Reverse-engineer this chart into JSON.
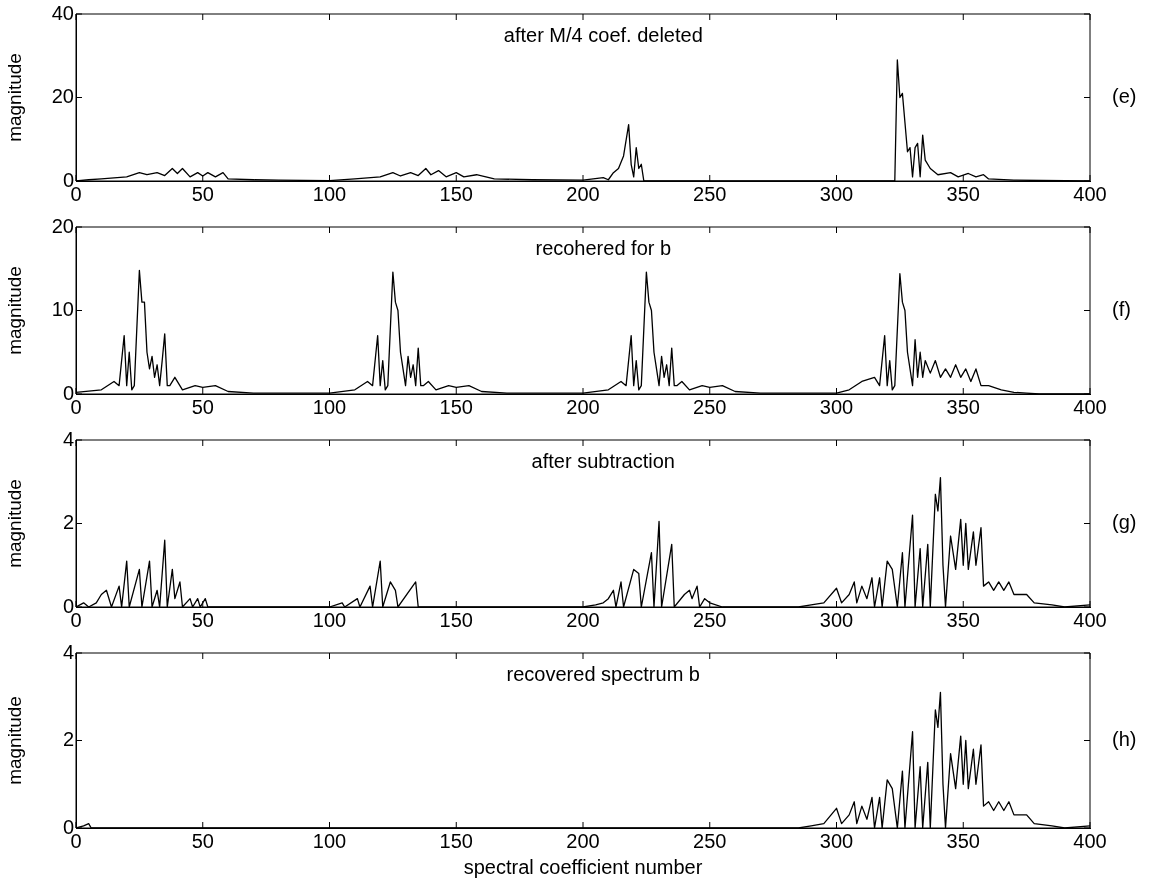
{
  "chart_data": [
    {
      "type": "line",
      "title": "after M/4 coef. deleted",
      "ylabel": "magnitude",
      "annotations": [
        "(e)"
      ],
      "xlim": [
        0,
        400
      ],
      "xticks": [
        0,
        50,
        100,
        150,
        200,
        250,
        300,
        350,
        400
      ],
      "ylim": [
        0,
        40
      ],
      "yticks": [
        0,
        20,
        40
      ],
      "grid": false,
      "legend": false,
      "marker": "none",
      "line_style": "solid",
      "series": [
        {
          "color": "#000000",
          "x": [
            0,
            5,
            10,
            20,
            25,
            28,
            32,
            35,
            38,
            40,
            42,
            45,
            48,
            50,
            52,
            55,
            58,
            60,
            70,
            80,
            100,
            110,
            120,
            125,
            128,
            132,
            135,
            138,
            140,
            143,
            146,
            150,
            153,
            158,
            165,
            180,
            200,
            208,
            210,
            212,
            214,
            216,
            218,
            219,
            220,
            221,
            222,
            223,
            224,
            323,
            324,
            325,
            326,
            327,
            328,
            329,
            330,
            331,
            332,
            333,
            334,
            335,
            337,
            340,
            345,
            348,
            352,
            355,
            358,
            360,
            370,
            400
          ],
          "values": [
            0,
            0.3,
            0.5,
            1,
            2,
            1.5,
            2,
            1.3,
            3,
            1.8,
            3,
            1,
            2,
            1.2,
            2,
            1,
            2,
            0.5,
            0.3,
            0.2,
            0.1,
            0.5,
            1,
            2,
            1.2,
            2,
            1.3,
            3,
            1.5,
            2.5,
            1,
            2,
            1,
            1.5,
            0.5,
            0.3,
            0.2,
            0.8,
            0.3,
            2,
            3,
            6,
            13.5,
            4,
            1,
            8,
            3,
            4,
            0,
            0,
            29,
            20,
            21,
            14,
            7,
            8,
            1,
            8,
            9,
            1,
            11,
            5,
            3,
            1.5,
            2,
            1,
            1.8,
            1,
            1.5,
            0.5,
            0.2,
            0
          ]
        }
      ]
    },
    {
      "type": "line",
      "title": "recohered for b",
      "ylabel": "magnitude",
      "annotations": [
        "(f)"
      ],
      "xlim": [
        0,
        400
      ],
      "xticks": [
        0,
        50,
        100,
        150,
        200,
        250,
        300,
        350,
        400
      ],
      "ylim": [
        0,
        20
      ],
      "yticks": [
        0,
        10,
        20
      ],
      "grid": false,
      "legend": false,
      "marker": "none",
      "line_style": "solid",
      "series": [
        {
          "color": "#000000",
          "x": [
            0,
            10,
            15,
            17,
            19,
            20,
            21,
            22,
            23,
            25,
            26,
            27,
            28,
            29,
            30,
            31,
            32,
            33,
            34,
            35,
            36,
            37,
            39,
            42,
            47,
            50,
            55,
            60,
            70,
            100,
            110,
            115,
            117,
            119,
            120,
            121,
            122,
            123,
            125,
            126,
            127,
            128,
            129,
            130,
            131,
            132,
            133,
            134,
            135,
            136,
            137,
            139,
            142,
            147,
            150,
            155,
            160,
            170,
            200,
            210,
            215,
            217,
            219,
            220,
            221,
            222,
            223,
            225,
            226,
            227,
            228,
            229,
            230,
            231,
            232,
            233,
            234,
            235,
            236,
            237,
            239,
            242,
            247,
            250,
            255,
            260,
            270,
            300,
            305,
            310,
            315,
            317,
            319,
            320,
            321,
            322,
            323,
            325,
            326,
            327,
            328,
            329,
            330,
            331,
            332,
            333,
            334,
            335,
            337,
            339,
            341,
            343,
            345,
            347,
            349,
            351,
            353,
            355,
            357,
            360,
            365,
            370,
            375,
            380,
            400
          ],
          "values": [
            0.2,
            0.5,
            1.5,
            1,
            7,
            1,
            5,
            0.5,
            1,
            14.8,
            11,
            11,
            5,
            3,
            4.5,
            2,
            3.5,
            1,
            4,
            7.2,
            1,
            1,
            2,
            0.5,
            1,
            0.8,
            1,
            0.3,
            0.1,
            0.1,
            0.5,
            1.5,
            1,
            7,
            1,
            4,
            0.5,
            1,
            14.6,
            11,
            10,
            5,
            3,
            1,
            4.5,
            2,
            3.5,
            1,
            5.5,
            1,
            1,
            1.5,
            0.5,
            1,
            0.8,
            1,
            0.3,
            0.1,
            0.1,
            0.5,
            1.5,
            1,
            7,
            1,
            4,
            0.5,
            1,
            14.6,
            11,
            10,
            5,
            3,
            1,
            4.5,
            2,
            3.5,
            1,
            5.5,
            1,
            1,
            1.5,
            0.5,
            1,
            0.8,
            1,
            0.3,
            0.1,
            0.1,
            0.5,
            1.5,
            2,
            1,
            7,
            1,
            4,
            0.5,
            1,
            14.4,
            11,
            10,
            5,
            3,
            1,
            6.5,
            2,
            5,
            2,
            4,
            2.5,
            4,
            2,
            3,
            2,
            3.5,
            2,
            3,
            1.5,
            3,
            1,
            1,
            0.5,
            0.2,
            0.1,
            0,
            0
          ]
        }
      ]
    },
    {
      "type": "line",
      "title": "after subtraction",
      "ylabel": "magnitude",
      "annotations": [
        "(g)"
      ],
      "xlim": [
        0,
        400
      ],
      "xticks": [
        0,
        50,
        100,
        150,
        200,
        250,
        300,
        350,
        400
      ],
      "ylim": [
        0,
        4
      ],
      "yticks": [
        0,
        2,
        4
      ],
      "grid": false,
      "legend": false,
      "marker": "none",
      "line_style": "solid",
      "series": [
        {
          "color": "#000000",
          "x": [
            0,
            3,
            5,
            8,
            10,
            12,
            14,
            17,
            18,
            20,
            21,
            25,
            26,
            29,
            30,
            32,
            33,
            35,
            36,
            38,
            39,
            41,
            42,
            45,
            46,
            48,
            49,
            51,
            52,
            100,
            105,
            106,
            111,
            112,
            116,
            117,
            120,
            121,
            124,
            126,
            127,
            134,
            135,
            200,
            205,
            208,
            210,
            212,
            213,
            215,
            216,
            220,
            222,
            223,
            227,
            228,
            230,
            231,
            235,
            236,
            240,
            242,
            243,
            245,
            246,
            248,
            250,
            255,
            285,
            290,
            295,
            300,
            302,
            305,
            307,
            308,
            310,
            312,
            314,
            315,
            317,
            318,
            320,
            322,
            324,
            326,
            327,
            330,
            331,
            333,
            334,
            336,
            337,
            339,
            340,
            341,
            342,
            343,
            345,
            347,
            349,
            350,
            351,
            352,
            354,
            355,
            357,
            358,
            360,
            362,
            364,
            366,
            368,
            370,
            375,
            378,
            385,
            390,
            400
          ],
          "values": [
            0,
            0.1,
            0,
            0.1,
            0.3,
            0.4,
            0,
            0.5,
            0,
            1.1,
            0,
            0.9,
            0,
            1.1,
            0,
            0.4,
            0,
            1.6,
            0,
            0.9,
            0.2,
            0.6,
            0,
            0.2,
            0,
            0.2,
            0,
            0.2,
            0,
            0,
            0.1,
            0,
            0.2,
            0,
            0.5,
            0,
            1.1,
            0,
            0.6,
            0.4,
            0,
            0.6,
            0,
            0,
            0.05,
            0.1,
            0.2,
            0.4,
            0,
            0.6,
            0,
            0.9,
            0.8,
            0,
            1.3,
            0,
            2.05,
            0,
            1.5,
            0,
            0.3,
            0.4,
            0.2,
            0.5,
            0,
            0.2,
            0.1,
            0,
            0,
            0.05,
            0.1,
            0.45,
            0.1,
            0.3,
            0.6,
            0.1,
            0.5,
            0.2,
            0.7,
            0,
            0.7,
            0,
            1.1,
            0.9,
            0,
            1.3,
            0,
            2.2,
            0,
            1.4,
            0,
            1.5,
            0,
            2.7,
            2.3,
            3.1,
            1,
            0,
            1.7,
            0.9,
            2.1,
            1,
            2,
            0.9,
            1.8,
            1,
            1.9,
            0.5,
            0.6,
            0.4,
            0.6,
            0.4,
            0.6,
            0.3,
            0.3,
            0.1,
            0.05,
            0,
            0.05
          ]
        }
      ]
    },
    {
      "type": "line",
      "title": "recovered spectrum b",
      "xlabel": "spectral coefficient number",
      "ylabel": "magnitude",
      "annotations": [
        "(h)"
      ],
      "xlim": [
        0,
        400
      ],
      "xticks": [
        0,
        50,
        100,
        150,
        200,
        250,
        300,
        350,
        400
      ],
      "ylim": [
        0,
        4
      ],
      "yticks": [
        0,
        2,
        4
      ],
      "grid": false,
      "legend": false,
      "marker": "none",
      "line_style": "solid",
      "series": [
        {
          "color": "#000000",
          "x": [
            0,
            3,
            5,
            6,
            285,
            290,
            295,
            300,
            302,
            305,
            307,
            308,
            310,
            312,
            314,
            315,
            317,
            318,
            320,
            322,
            324,
            326,
            327,
            330,
            331,
            333,
            334,
            336,
            337,
            339,
            340,
            341,
            342,
            343,
            345,
            347,
            349,
            350,
            351,
            352,
            354,
            355,
            357,
            358,
            360,
            362,
            364,
            366,
            368,
            370,
            375,
            378,
            385,
            390,
            400
          ],
          "values": [
            0,
            0.05,
            0.1,
            0,
            0,
            0.05,
            0.1,
            0.45,
            0.1,
            0.3,
            0.6,
            0.1,
            0.5,
            0.2,
            0.7,
            0,
            0.7,
            0,
            1.1,
            0.9,
            0,
            1.3,
            0,
            2.2,
            0,
            1.4,
            0,
            1.5,
            0,
            2.7,
            2.3,
            3.1,
            1,
            0,
            1.7,
            0.9,
            2.1,
            1,
            2,
            0.9,
            1.8,
            1,
            1.9,
            0.5,
            0.6,
            0.4,
            0.6,
            0.4,
            0.6,
            0.3,
            0.3,
            0.1,
            0.05,
            0,
            0.05
          ]
        }
      ]
    }
  ]
}
